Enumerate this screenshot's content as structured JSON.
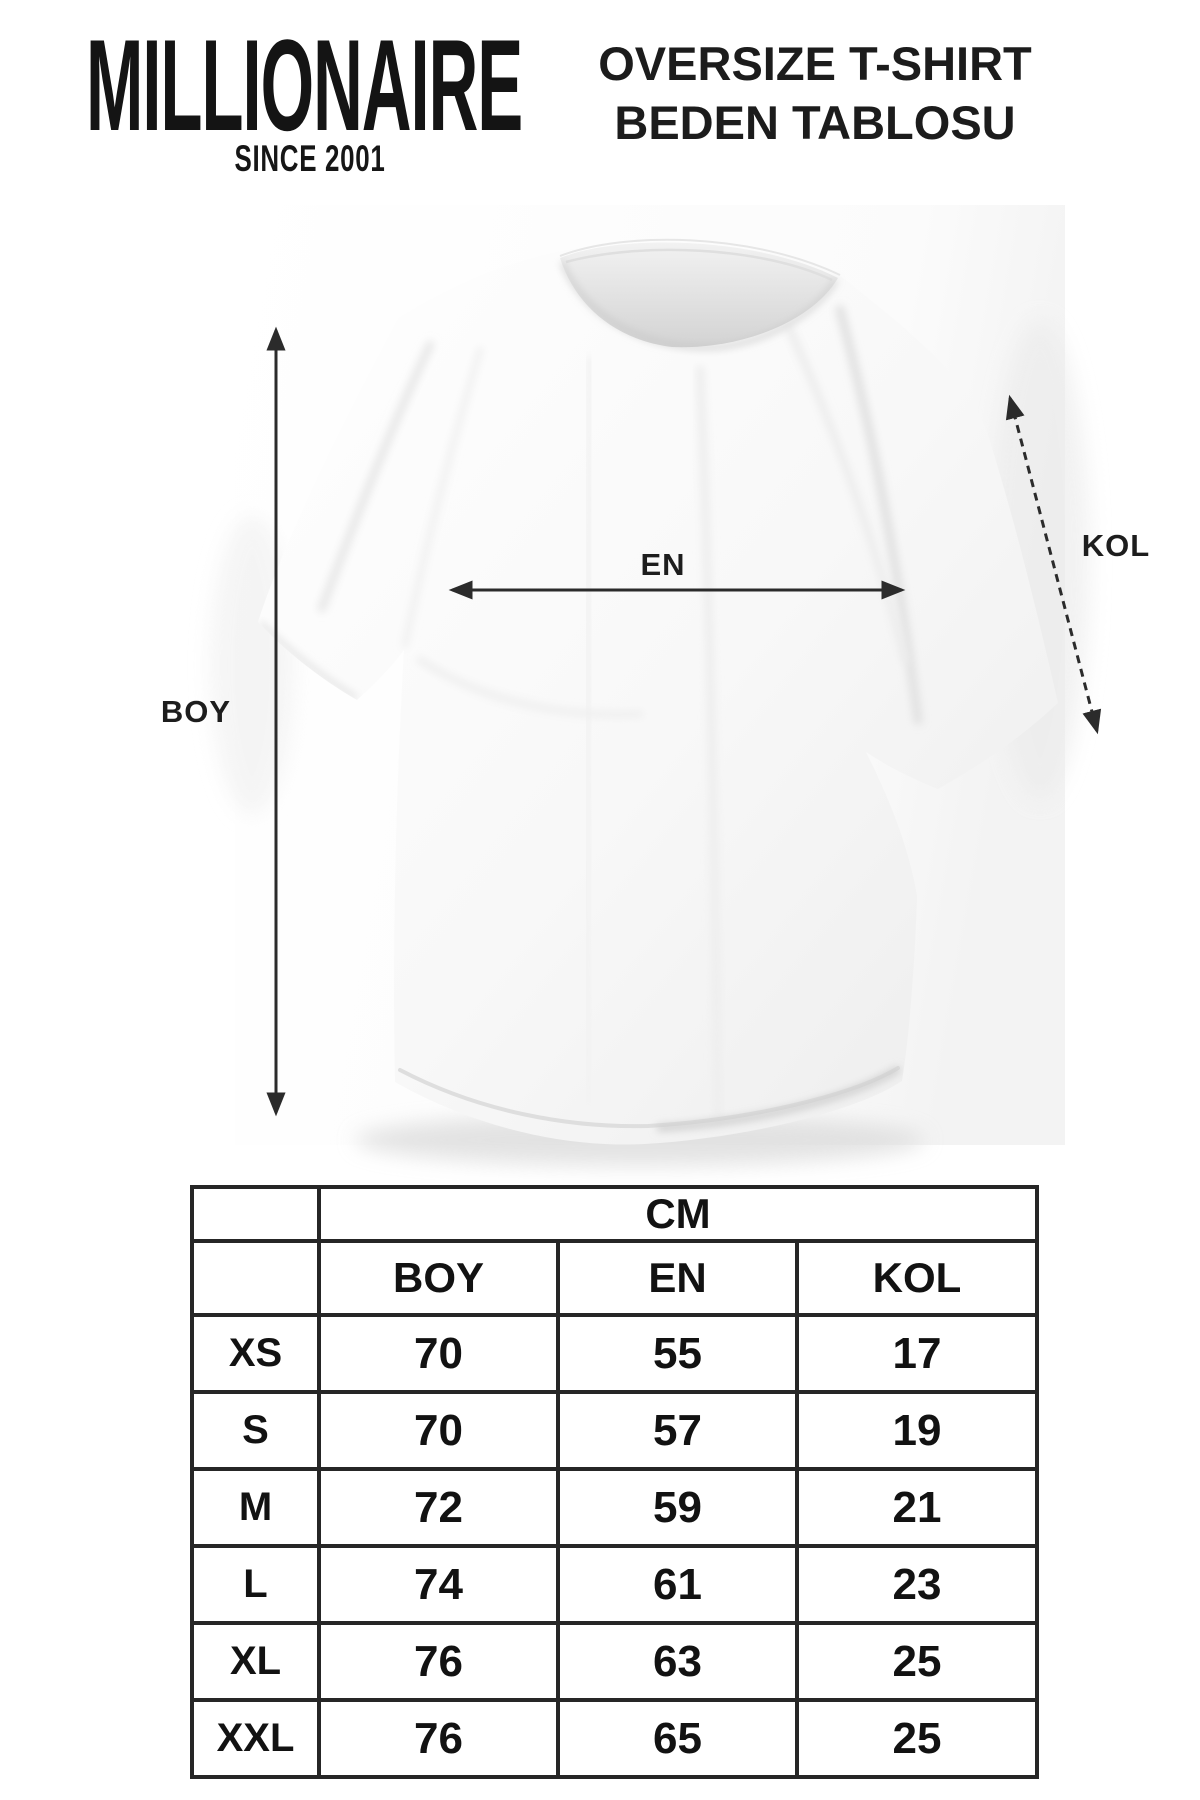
{
  "brand": {
    "name": "MILLIONAIRE",
    "tagline": "SINCE 2001"
  },
  "title": {
    "line1": "OVERSIZE T-SHIRT",
    "line2": "BEDEN TABLOSU"
  },
  "diagram": {
    "boy_label": "BOY",
    "en_label": "EN",
    "kol_label": "KOL"
  },
  "chart_data": {
    "type": "table",
    "title": "OVERSIZE T-SHIRT BEDEN TABLOSU",
    "unit_header": "CM",
    "columns": [
      "BOY",
      "EN",
      "KOL"
    ],
    "rows": [
      {
        "size": "XS",
        "values": [
          70,
          55,
          17
        ]
      },
      {
        "size": "S",
        "values": [
          70,
          57,
          19
        ]
      },
      {
        "size": "M",
        "values": [
          72,
          59,
          21
        ]
      },
      {
        "size": "L",
        "values": [
          74,
          61,
          23
        ]
      },
      {
        "size": "XL",
        "values": [
          76,
          63,
          25
        ]
      },
      {
        "size": "XXL",
        "values": [
          76,
          65,
          25
        ]
      }
    ]
  },
  "colors": {
    "text": "#1a1a1a",
    "table_border": "#262626",
    "arrow": "#2b2b2b",
    "shirt_shadow": "#d8d8d8"
  }
}
